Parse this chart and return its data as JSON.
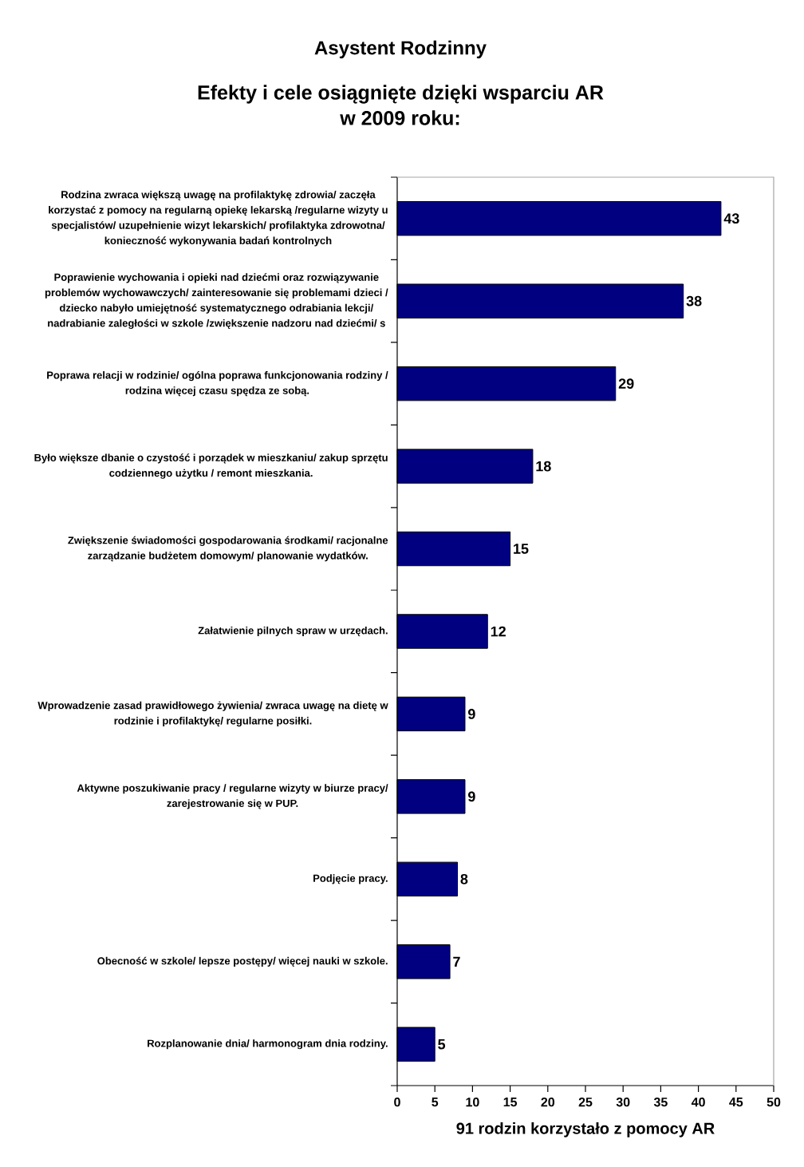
{
  "chart_data": {
    "type": "bar",
    "orientation": "horizontal",
    "title": "Asystent Rodzinny",
    "subtitle": "Efekty i cele osiągnięte dzięki wsparciu AR w 2009 roku:",
    "xlabel": "91 rodzin korzystało z pomocy AR",
    "categories": [
      "Rodzina zwraca większą uwagę na profilaktykę zdrowia/ zaczęła korzystać z pomocy na regularną opiekę lekarską /regularne wizyty u specjalistów/ uzupełnienie wizyt lekarskich/ profilaktyka zdrowotna/ konieczność wykonywania badań kontrolnych",
      "Poprawienie wychowania i opieki nad dziećmi oraz rozwiązywanie problemów wychowawczych/ zainteresowanie się problemami dzieci / dziecko nabyło umiejętność systematycznego odrabiania lekcji/ nadrabianie zaległości w szkole /zwiększenie nadzoru nad dziećmi/ s",
      "Poprawa relacji w rodzinie/ ogólna poprawa funkcjonowania rodziny / rodzina więcej czasu spędza ze sobą.",
      "Było większe dbanie o czystość i porządek w mieszkaniu/ zakup sprzętu codziennego użytku / remont mieszkania.",
      "Zwiększenie świadomości gospodarowania środkami/ racjonalne zarządzanie budżetem domowym/ planowanie wydatków.",
      "Załatwienie pilnych spraw w urzędach.",
      "Wprowadzenie zasad prawidłowego żywienia/ zwraca uwagę na dietę w rodzinie i profilaktykę/ regularne posiłki.",
      "Aktywne poszukiwanie pracy / regularne wizyty w biurze pracy/ zarejestrowanie się w PUP.",
      "Podjęcie pracy.",
      "Obecność w szkole/ lepsze postępy/ więcej nauki w szkole.",
      "Rozplanowanie dnia/ harmonogram dnia rodziny."
    ],
    "values": [
      43,
      38,
      29,
      18,
      15,
      12,
      9,
      9,
      8,
      7,
      5
    ],
    "color": "#000080",
    "data_labels": true,
    "xlim": [
      0,
      50
    ],
    "xticks": [
      0,
      5,
      10,
      15,
      20,
      25,
      30,
      35,
      40,
      45,
      50
    ]
  }
}
